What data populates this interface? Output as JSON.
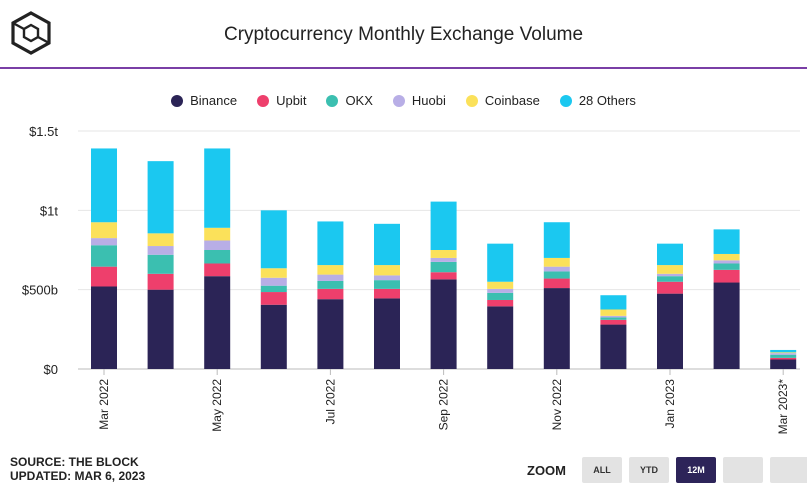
{
  "header": {
    "title": "Cryptocurrency Monthly Exchange Volume"
  },
  "colors": {
    "divider": "#7a3fa6"
  },
  "chart_data": {
    "type": "bar",
    "stacked": true,
    "title": "Cryptocurrency Monthly Exchange Volume",
    "xlabel": "",
    "ylabel": "",
    "ylim": [
      0,
      1500
    ],
    "y_unit": "billion USD",
    "y_ticks": [
      {
        "value": 0,
        "label": "$0"
      },
      {
        "value": 500,
        "label": "$500b"
      },
      {
        "value": 1000,
        "label": "$1t"
      },
      {
        "value": 1500,
        "label": "$1.5t"
      }
    ],
    "categories": [
      "Mar 2022",
      "Apr 2022",
      "May 2022",
      "Jun 2022",
      "Jul 2022",
      "Aug 2022",
      "Sep 2022",
      "Oct 2022",
      "Nov 2022",
      "Dec 2022",
      "Jan 2023",
      "Feb 2023",
      "Mar 2023*"
    ],
    "category_labels": [
      "Mar 2022",
      "",
      "May 2022",
      "",
      "Jul 2022",
      "",
      "Sep 2022",
      "",
      "Nov 2022",
      "",
      "Jan 2023",
      "",
      "Mar 2023*"
    ],
    "grid": true,
    "legend_position": "top-center",
    "series": [
      {
        "name": "Binance",
        "color": "#2b2456",
        "values": [
          520,
          500,
          585,
          405,
          440,
          445,
          565,
          395,
          510,
          280,
          475,
          545,
          60
        ]
      },
      {
        "name": "Upbit",
        "color": "#ee3f6c",
        "values": [
          125,
          100,
          80,
          80,
          65,
          60,
          45,
          40,
          60,
          30,
          75,
          80,
          10
        ]
      },
      {
        "name": "OKX",
        "color": "#3bbfb0",
        "values": [
          135,
          120,
          85,
          40,
          50,
          55,
          65,
          45,
          45,
          15,
          35,
          40,
          20
        ]
      },
      {
        "name": "Huobi",
        "color": "#b8aee6",
        "values": [
          45,
          55,
          60,
          50,
          40,
          30,
          25,
          25,
          30,
          10,
          15,
          20,
          10
        ]
      },
      {
        "name": "Coinbase",
        "color": "#fbe15a",
        "values": [
          100,
          80,
          80,
          60,
          60,
          65,
          50,
          45,
          55,
          40,
          55,
          40,
          5
        ]
      },
      {
        "name": "28 Others",
        "color": "#1bc8f0",
        "values": [
          465,
          455,
          500,
          365,
          275,
          260,
          305,
          240,
          225,
          90,
          135,
          155,
          15
        ]
      }
    ]
  },
  "footer": {
    "source": "SOURCE: THE BLOCK",
    "updated": "UPDATED: MAR 6, 2023"
  },
  "zoom": {
    "label": "ZOOM",
    "buttons": [
      "ALL",
      "YTD",
      "12M",
      "",
      ""
    ],
    "active": "12M"
  }
}
